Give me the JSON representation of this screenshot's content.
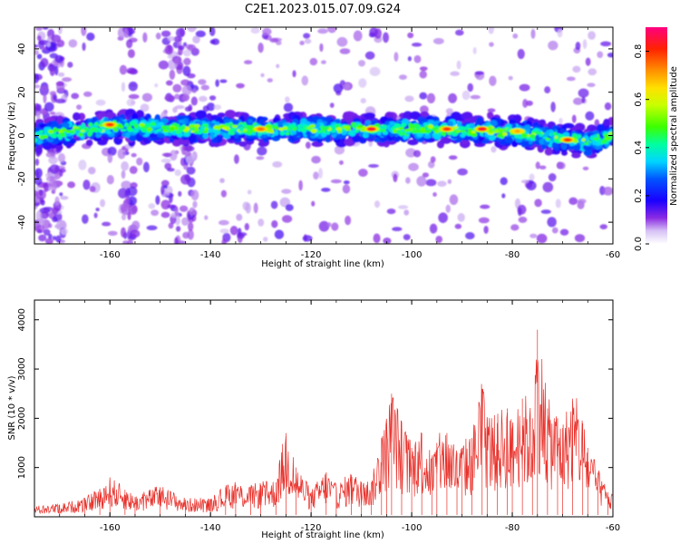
{
  "figure": {
    "title": "C2E1.2023.015.07.09.G24"
  },
  "colorbar": {
    "label": "Normalized spectral amplitude",
    "ticks": [
      "0.0",
      "0.2",
      "0.4",
      "0.6",
      "0.8"
    ],
    "tick_values": [
      0.0,
      0.2,
      0.4,
      0.6,
      0.8
    ],
    "range": [
      0,
      0.9
    ]
  },
  "chart_data": [
    {
      "type": "heatmap",
      "title": "C2E1.2023.015.07.09.G24",
      "xlabel": "Height of straight line (km)",
      "ylabel": "Frequency (Hz)",
      "xlim": [
        -175,
        -60
      ],
      "ylim": [
        -50,
        50
      ],
      "xticks": [
        -160,
        -140,
        -120,
        -100,
        -80,
        -60
      ],
      "yticks": [
        -40,
        -20,
        0,
        20,
        40
      ],
      "colormap": "rainbow",
      "ridge": {
        "x": [
          -175,
          -160,
          -140,
          -120,
          -100,
          -85,
          -75,
          -65,
          -60
        ],
        "frequency": [
          0,
          4,
          3,
          3,
          3,
          2.5,
          0,
          -3,
          0
        ]
      },
      "peaks": [
        {
          "x": -160,
          "y": 5,
          "amplitude": 0.8
        },
        {
          "x": -130,
          "y": 3,
          "amplitude": 0.75
        },
        {
          "x": -108,
          "y": 3,
          "amplitude": 0.85
        },
        {
          "x": -93,
          "y": 3,
          "amplitude": 0.8
        },
        {
          "x": -86,
          "y": 3,
          "amplitude": 0.85
        },
        {
          "x": -79,
          "y": 2,
          "amplitude": 0.7
        },
        {
          "x": -69,
          "y": -2,
          "amplitude": 0.8
        }
      ]
    },
    {
      "type": "line",
      "xlabel": "Height of straight line (km)",
      "ylabel": "SNR (10 * v/v)",
      "xlim": [
        -175,
        -60
      ],
      "ylim": [
        0,
        4400
      ],
      "xticks": [
        -160,
        -140,
        -120,
        -100,
        -80,
        -60
      ],
      "yticks": [
        1000,
        2000,
        3000,
        4000
      ],
      "series": [
        {
          "color": "#e8302a",
          "x": [
            -175,
            -170,
            -165,
            -162,
            -160,
            -157,
            -155,
            -150,
            -145,
            -140,
            -137,
            -135,
            -132,
            -130,
            -127,
            -125,
            -123,
            -120,
            -117,
            -115,
            -112,
            -110,
            -108,
            -106,
            -105,
            -104,
            -102,
            -100,
            -98,
            -96,
            -95,
            -93,
            -91,
            -90,
            -88,
            -86,
            -85,
            -83,
            -81,
            -80,
            -78,
            -76,
            -75,
            -73,
            -71,
            -70,
            -68,
            -66,
            -65,
            -63,
            -61,
            -60
          ],
          "values": [
            200,
            250,
            350,
            550,
            750,
            550,
            400,
            600,
            350,
            350,
            600,
            650,
            600,
            650,
            700,
            1700,
            1000,
            500,
            900,
            600,
            850,
            700,
            700,
            1600,
            1900,
            2500,
            1800,
            1400,
            1700,
            1200,
            1500,
            1700,
            1300,
            1400,
            1600,
            2600,
            2000,
            1900,
            2200,
            1800,
            2400,
            2000,
            3800,
            2200,
            2000,
            1800,
            2400,
            1900,
            1400,
            900,
            500,
            400
          ]
        }
      ]
    }
  ]
}
